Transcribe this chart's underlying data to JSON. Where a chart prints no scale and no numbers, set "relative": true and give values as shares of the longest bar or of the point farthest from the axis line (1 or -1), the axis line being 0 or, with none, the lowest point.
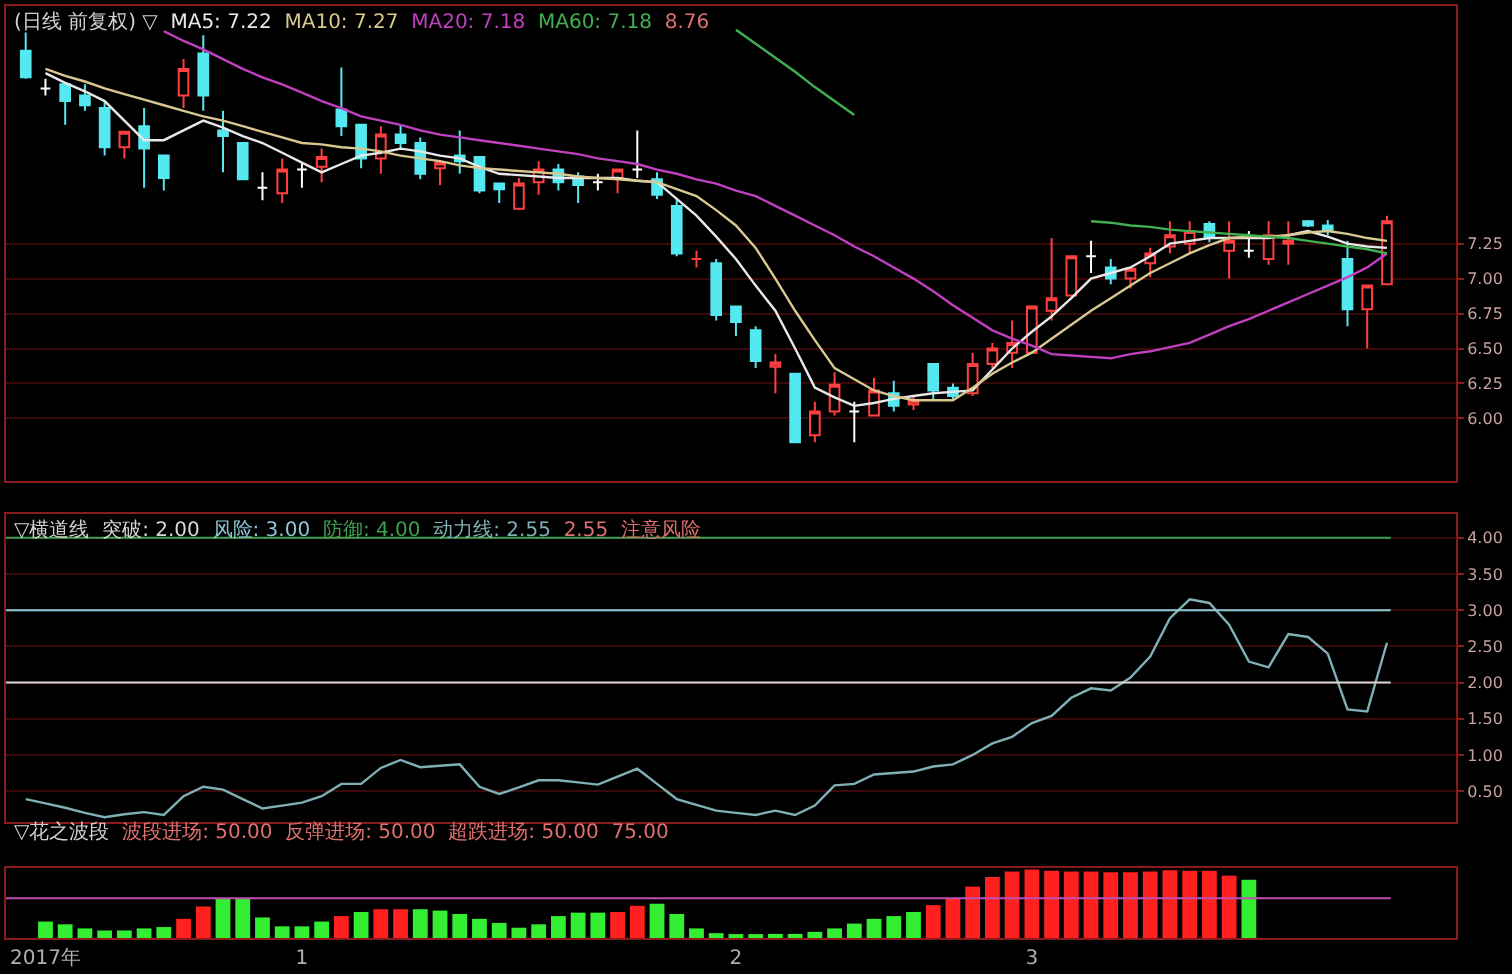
{
  "chart_data": [
    {
      "type": "candlestick",
      "title": "(日线 前复权) ▽",
      "categories": [
        null,
        null,
        null,
        null,
        null,
        null,
        null,
        null,
        null,
        null,
        null,
        null,
        null,
        null,
        null,
        null,
        null,
        null,
        null,
        null,
        null,
        null,
        null,
        null,
        null,
        null,
        null,
        null,
        null,
        null,
        null,
        null,
        null,
        null,
        null,
        null,
        null,
        null,
        null,
        null,
        null,
        null,
        null,
        null,
        null,
        null,
        null,
        null,
        null,
        null,
        null,
        null,
        null,
        null,
        null,
        null,
        null,
        null,
        null,
        null,
        null,
        null,
        null,
        null,
        null,
        null,
        null,
        null,
        null,
        null
      ],
      "ohlc": [
        [
          8.63,
          8.76,
          8.43,
          8.44
        ],
        [
          8.36,
          8.43,
          8.31,
          8.36
        ],
        [
          8.39,
          8.4,
          8.1,
          8.27
        ],
        [
          8.31,
          8.39,
          8.2,
          8.24
        ],
        [
          8.22,
          8.27,
          7.88,
          7.94
        ],
        [
          7.94,
          8.05,
          7.86,
          8.05
        ],
        [
          8.09,
          8.22,
          7.65,
          7.93
        ],
        [
          7.88,
          7.88,
          7.63,
          7.72
        ],
        [
          8.31,
          8.57,
          8.22,
          8.5
        ],
        [
          8.61,
          8.74,
          8.2,
          8.31
        ],
        [
          8.06,
          8.2,
          7.76,
          8.02
        ],
        [
          7.97,
          7.97,
          7.71,
          7.71
        ],
        [
          7.65,
          7.76,
          7.56,
          7.65
        ],
        [
          7.61,
          7.86,
          7.54,
          7.78
        ],
        [
          7.78,
          7.83,
          7.65,
          7.78
        ],
        [
          7.8,
          7.93,
          7.69,
          7.87
        ],
        [
          8.21,
          8.51,
          8.02,
          8.09
        ],
        [
          8.1,
          8.1,
          7.79,
          7.86
        ],
        [
          7.86,
          8.09,
          7.75,
          8.03
        ],
        [
          8.03,
          8.1,
          7.93,
          7.97
        ],
        [
          7.97,
          8.01,
          7.71,
          7.75
        ],
        [
          7.79,
          7.83,
          7.67,
          7.83
        ],
        [
          7.88,
          8.06,
          7.75,
          7.84
        ],
        [
          7.87,
          7.87,
          7.61,
          7.63
        ],
        [
          7.68,
          7.68,
          7.54,
          7.64
        ],
        [
          7.5,
          7.72,
          7.49,
          7.68
        ],
        [
          7.69,
          7.84,
          7.6,
          7.78
        ],
        [
          7.78,
          7.82,
          7.63,
          7.69
        ],
        [
          7.73,
          7.76,
          7.54,
          7.67
        ],
        [
          7.69,
          7.75,
          7.63,
          7.69
        ],
        [
          7.72,
          7.78,
          7.61,
          7.78
        ],
        [
          7.78,
          8.06,
          7.72,
          7.78
        ],
        [
          7.71,
          7.76,
          7.57,
          7.6
        ],
        [
          7.52,
          7.57,
          7.16,
          7.18
        ],
        [
          7.14,
          7.2,
          7.08,
          7.14
        ],
        [
          7.11,
          7.14,
          6.7,
          6.74
        ],
        [
          6.8,
          6.8,
          6.59,
          6.69
        ],
        [
          6.63,
          6.66,
          6.36,
          6.41
        ],
        [
          6.37,
          6.46,
          6.18,
          6.4
        ],
        [
          6.32,
          6.32,
          5.83,
          5.83
        ],
        [
          5.88,
          6.12,
          5.83,
          6.05
        ],
        [
          6.05,
          6.33,
          6.02,
          6.24
        ],
        [
          6.05,
          6.12,
          5.83,
          6.05
        ],
        [
          6.02,
          6.29,
          6.02,
          6.2
        ],
        [
          6.18,
          6.27,
          6.05,
          6.09
        ],
        [
          6.1,
          6.16,
          6.06,
          6.13
        ],
        [
          6.39,
          6.39,
          6.13,
          6.2
        ],
        [
          6.22,
          6.25,
          6.13,
          6.16
        ],
        [
          6.18,
          6.47,
          6.16,
          6.39
        ],
        [
          6.39,
          6.54,
          6.36,
          6.5
        ],
        [
          6.47,
          6.7,
          6.36,
          6.54
        ],
        [
          6.47,
          6.8,
          6.47,
          6.8
        ],
        [
          6.77,
          7.29,
          6.7,
          6.86
        ],
        [
          6.88,
          7.16,
          6.88,
          7.16
        ],
        [
          7.16,
          7.27,
          7.04,
          7.16
        ],
        [
          7.08,
          7.14,
          6.96,
          7.0
        ],
        [
          7.0,
          7.08,
          6.93,
          7.07
        ],
        [
          7.11,
          7.22,
          7.01,
          7.18
        ],
        [
          7.23,
          7.41,
          7.18,
          7.31
        ],
        [
          7.25,
          7.41,
          7.18,
          7.34
        ],
        [
          7.39,
          7.41,
          7.26,
          7.29
        ],
        [
          7.2,
          7.41,
          7.0,
          7.27
        ],
        [
          7.2,
          7.34,
          7.15,
          7.2
        ],
        [
          7.14,
          7.41,
          7.1,
          7.31
        ],
        [
          7.25,
          7.41,
          7.1,
          7.27
        ],
        [
          7.41,
          7.42,
          7.37,
          7.38
        ],
        [
          7.38,
          7.42,
          7.31,
          7.34
        ],
        [
          7.14,
          7.27,
          6.66,
          6.78
        ],
        [
          6.78,
          6.95,
          6.5,
          6.95
        ],
        [
          6.96,
          7.45,
          6.96,
          7.41
        ]
      ],
      "colors": [
        "#54e8f0",
        "#ffffff",
        "#54e8f0",
        "#54e8f0",
        "#54e8f0",
        "#ff4040",
        "#54e8f0",
        "#54e8f0",
        "#ff4040",
        "#54e8f0",
        "#54e8f0",
        "#54e8f0",
        "#ffffff",
        "#ff4040",
        "#ffffff",
        "#ff4040",
        "#54e8f0",
        "#54e8f0",
        "#ff4040",
        "#54e8f0",
        "#54e8f0",
        "#ff4040",
        "#54e8f0",
        "#54e8f0",
        "#54e8f0",
        "#ff4040",
        "#ff4040",
        "#54e8f0",
        "#54e8f0",
        "#ffffff",
        "#ff4040",
        "#ffffff",
        "#54e8f0",
        "#54e8f0",
        "#ff4040",
        "#54e8f0",
        "#54e8f0",
        "#54e8f0",
        "#ff4040",
        "#54e8f0",
        "#ff4040",
        "#ff4040",
        "#ffffff",
        "#ff4040",
        "#54e8f0",
        "#ff4040",
        "#54e8f0",
        "#54e8f0",
        "#ff4040",
        "#ff4040",
        "#ff4040",
        "#ff4040",
        "#ff4040",
        "#ff4040",
        "#ffffff",
        "#54e8f0",
        "#ff4040",
        "#ff4040",
        "#ff4040",
        "#ff4040",
        "#54e8f0",
        "#ff4040",
        "#ffffff",
        "#ff4040",
        "#ff4040",
        "#54e8f0",
        "#54e8f0",
        "#54e8f0",
        "#ff4040",
        "#ff4040"
      ],
      "series": [
        {
          "type": "line",
          "name": "MA5: 7.22",
          "color": "#e8e8e8",
          "values": [
            null,
            8.47,
            8.4,
            8.34,
            8.27,
            8.13,
            7.99,
            7.99,
            8.06,
            8.13,
            8.08,
            8.02,
            7.97,
            7.9,
            7.83,
            7.76,
            7.82,
            7.88,
            7.9,
            7.93,
            7.91,
            7.88,
            7.86,
            7.8,
            7.75,
            7.74,
            7.73,
            7.72,
            7.72,
            7.72,
            7.72,
            7.7,
            7.69,
            7.57,
            7.45,
            7.3,
            7.14,
            6.95,
            6.77,
            6.5,
            6.22,
            6.15,
            6.09,
            6.11,
            6.14,
            6.16,
            6.18,
            6.19,
            6.2,
            6.35,
            6.5,
            6.62,
            6.73,
            6.86,
            7.0,
            7.04,
            7.08,
            7.16,
            7.25,
            7.27,
            7.29,
            7.29,
            7.29,
            7.29,
            7.31,
            7.34,
            7.3,
            7.25,
            7.23,
            7.22
          ]
        },
        {
          "type": "line",
          "name": "MA10: 7.27",
          "color": "#d8c890",
          "values": [
            null,
            8.5,
            8.45,
            8.41,
            8.36,
            8.32,
            8.28,
            8.24,
            8.2,
            8.16,
            8.13,
            8.09,
            8.05,
            8.01,
            7.97,
            7.96,
            7.94,
            7.93,
            7.91,
            7.88,
            7.86,
            7.84,
            7.81,
            7.79,
            7.78,
            7.77,
            7.76,
            7.75,
            7.73,
            7.72,
            7.71,
            7.7,
            7.69,
            7.64,
            7.59,
            7.49,
            7.38,
            7.22,
            7.0,
            6.77,
            6.56,
            6.36,
            6.28,
            6.2,
            6.16,
            6.13,
            6.13,
            6.13,
            6.22,
            6.32,
            6.4,
            6.47,
            6.57,
            6.67,
            6.77,
            6.86,
            6.95,
            7.04,
            7.11,
            7.18,
            7.24,
            7.29,
            7.3,
            7.3,
            7.31,
            7.33,
            7.34,
            7.32,
            7.29,
            7.27
          ]
        },
        {
          "type": "line",
          "name": "MA20: 7.18",
          "color": "#c040c0",
          "values": [
            null,
            null,
            null,
            null,
            null,
            null,
            null,
            8.77,
            8.7,
            8.64,
            8.57,
            8.5,
            8.44,
            8.39,
            8.33,
            8.27,
            8.22,
            8.16,
            8.13,
            8.1,
            8.06,
            8.03,
            8.01,
            7.99,
            7.97,
            7.95,
            7.93,
            7.91,
            7.89,
            7.86,
            7.84,
            7.82,
            7.78,
            7.75,
            7.71,
            7.68,
            7.63,
            7.59,
            7.52,
            7.45,
            7.38,
            7.31,
            7.23,
            7.16,
            7.08,
            7.0,
            6.91,
            6.81,
            6.72,
            6.63,
            6.57,
            6.52,
            6.46,
            6.45,
            6.44,
            6.43,
            6.46,
            6.48,
            6.51,
            6.54,
            6.6,
            6.66,
            6.71,
            6.77,
            6.83,
            6.89,
            6.95,
            7.01,
            7.08,
            7.18
          ]
        },
        {
          "type": "line",
          "name": "MA60: 7.18",
          "color": "#40b050",
          "values": [
            null,
            null,
            null,
            null,
            null,
            null,
            null,
            null,
            null,
            null,
            null,
            null,
            null,
            null,
            null,
            null,
            null,
            null,
            null,
            null,
            null,
            null,
            null,
            null,
            null,
            null,
            null,
            null,
            null,
            null,
            null,
            null,
            null,
            null,
            null,
            null,
            8.78,
            8.68,
            8.58,
            8.48,
            8.37,
            8.27,
            8.17,
            null,
            null,
            null,
            null,
            null,
            null,
            null,
            null,
            null,
            null,
            null,
            7.41,
            7.4,
            7.38,
            7.37,
            7.35,
            7.34,
            7.33,
            7.32,
            7.31,
            7.3,
            7.29,
            7.27,
            7.25,
            7.23,
            7.21,
            7.18
          ]
        }
      ],
      "annotations": [
        "8.76"
      ],
      "ylim": [
        5.55,
        8.95
      ],
      "yticks": [
        {
          "value": 6,
          "label": "6.00"
        },
        {
          "value": 6.25,
          "label": "6.25"
        },
        {
          "value": 6.5,
          "label": "6.50"
        },
        {
          "value": 6.75,
          "label": "6.75"
        },
        {
          "value": 7,
          "label": "7.00"
        },
        {
          "value": 7.25,
          "label": "7.25"
        }
      ],
      "grid": "y",
      "tick_labels": "y"
    },
    {
      "type": "line",
      "title": "▽横道线",
      "categories": [
        null,
        null,
        null,
        null,
        null,
        null,
        null,
        null,
        null,
        null,
        null,
        null,
        null,
        null,
        null,
        null,
        null,
        null,
        null,
        null,
        null,
        null,
        null,
        null,
        null,
        null,
        null,
        null,
        null,
        null,
        null,
        null,
        null,
        null,
        null,
        null,
        null,
        null,
        null,
        null,
        null,
        null,
        null,
        null,
        null,
        null,
        null,
        null,
        null,
        null,
        null,
        null,
        null,
        null,
        null,
        null,
        null,
        null,
        null,
        null,
        null,
        null,
        null,
        null,
        null,
        null,
        null,
        null,
        null,
        null
      ],
      "series": [
        {
          "name": "动力线: 2.55",
          "color": "#7fb0b5",
          "values": [
            0.39,
            0.33,
            0.27,
            0.2,
            0.14,
            0.18,
            0.21,
            0.17,
            0.43,
            0.56,
            0.52,
            0.39,
            0.26,
            0.3,
            0.34,
            0.43,
            0.6,
            0.6,
            0.82,
            0.93,
            0.83,
            0.85,
            0.87,
            0.56,
            0.46,
            0.55,
            0.65,
            0.65,
            0.62,
            0.59,
            0.7,
            0.81,
            0.6,
            0.39,
            0.31,
            0.23,
            0.2,
            0.17,
            0.23,
            0.17,
            0.3,
            0.58,
            0.6,
            0.73,
            0.75,
            0.77,
            0.84,
            0.87,
            1.0,
            1.16,
            1.25,
            1.44,
            1.54,
            1.79,
            1.92,
            1.89,
            2.07,
            2.36,
            2.89,
            3.15,
            3.1,
            2.8,
            2.29,
            2.21,
            2.67,
            2.63,
            2.4,
            1.63,
            1.6,
            2.55
          ]
        }
      ],
      "ref_lines": [
        {
          "axis": "y",
          "value": 2,
          "label": "突破: 2.00",
          "color": "#d8d8d8"
        },
        {
          "axis": "y",
          "value": 3,
          "label": "风险: 3.00",
          "color": "#8fc8d8"
        },
        {
          "axis": "y",
          "value": 4,
          "label": "防御: 4.00",
          "color": "#3fa04f"
        }
      ],
      "annotations": [
        "2.55",
        "注意风险"
      ],
      "ylim": [
        0.08,
        4.33
      ],
      "yticks": [
        {
          "value": 0.5,
          "label": "0.50"
        },
        {
          "value": 1,
          "label": "1.00"
        },
        {
          "value": 1.5,
          "label": "1.50"
        },
        {
          "value": 2,
          "label": "2.00"
        },
        {
          "value": 2.5,
          "label": "2.50"
        },
        {
          "value": 3,
          "label": "3.00"
        },
        {
          "value": 3.5,
          "label": "3.50"
        },
        {
          "value": 4,
          "label": "4.00"
        }
      ],
      "grid": "y",
      "tick_labels": "y"
    },
    {
      "type": "bar",
      "title": "▽花之波段",
      "relative": true,
      "categories": [
        null,
        "2017年",
        null,
        null,
        null,
        null,
        null,
        null,
        null,
        null,
        null,
        null,
        null,
        null,
        "1",
        null,
        null,
        null,
        null,
        null,
        null,
        null,
        null,
        null,
        null,
        null,
        null,
        null,
        null,
        null,
        null,
        null,
        null,
        null,
        null,
        null,
        "2",
        null,
        null,
        null,
        null,
        null,
        null,
        null,
        null,
        null,
        null,
        null,
        null,
        null,
        null,
        "3",
        null,
        null,
        null,
        null,
        null,
        null,
        null,
        null,
        null,
        null,
        null,
        null,
        null,
        null,
        null,
        null,
        null,
        null
      ],
      "values": [
        null,
        0.24,
        0.2,
        0.14,
        0.11,
        0.11,
        0.14,
        0.16,
        0.28,
        0.46,
        0.58,
        0.58,
        0.3,
        0.17,
        0.17,
        0.24,
        0.32,
        0.38,
        0.42,
        0.42,
        0.42,
        0.4,
        0.35,
        0.28,
        0.22,
        0.15,
        0.2,
        0.32,
        0.37,
        0.37,
        0.38,
        0.47,
        0.5,
        0.35,
        0.14,
        0.07,
        0.05,
        0.05,
        0.06,
        0.06,
        0.09,
        0.14,
        0.21,
        0.28,
        0.32,
        0.38,
        0.48,
        0.57,
        0.75,
        0.89,
        0.97,
        1,
        0.98,
        0.97,
        0.97,
        0.96,
        0.96,
        0.97,
        0.99,
        0.98,
        0.98,
        0.91,
        0.85,
        null,
        null,
        null,
        null,
        null,
        null,
        null
      ],
      "colors": [
        "#33ee33",
        "#33ee33",
        "#33ee33",
        "#33ee33",
        "#33ee33",
        "#33ee33",
        "#33ee33",
        "#33ee33",
        "#ff2020",
        "#ff2020",
        "#33ee33",
        "#33ee33",
        "#33ee33",
        "#33ee33",
        "#33ee33",
        "#33ee33",
        "#ff2020",
        "#33ee33",
        "#ff2020",
        "#ff2020",
        "#33ee33",
        "#33ee33",
        "#33ee33",
        "#33ee33",
        "#33ee33",
        "#33ee33",
        "#33ee33",
        "#33ee33",
        "#33ee33",
        "#33ee33",
        "#ff2020",
        "#ff2020",
        "#33ee33",
        "#33ee33",
        "#33ee33",
        "#33ee33",
        "#33ee33",
        "#33ee33",
        "#33ee33",
        "#33ee33",
        "#33ee33",
        "#33ee33",
        "#33ee33",
        "#33ee33",
        "#33ee33",
        "#33ee33",
        "#ff2020",
        "#ff2020",
        "#ff2020",
        "#ff2020",
        "#ff2020",
        "#ff2020",
        "#ff2020",
        "#ff2020",
        "#ff2020",
        "#ff2020",
        "#ff2020",
        "#ff2020",
        "#ff2020",
        "#ff2020",
        "#ff2020",
        "#ff2020",
        "#33ee33",
        "#33ee33",
        "#33ee33",
        "#33ee33",
        "#33ee33",
        "#33ee33",
        "#33ee33",
        "#33ee33"
      ],
      "ref_lines": [
        {
          "axis": "y",
          "value": 0.58,
          "color": "#c050b0"
        }
      ],
      "annotations": [
        "波段进场: 50.00",
        "反弹进场: 50.00",
        "超跌进场: 50.00",
        "75.00"
      ],
      "tick_labels": "x"
    }
  ]
}
